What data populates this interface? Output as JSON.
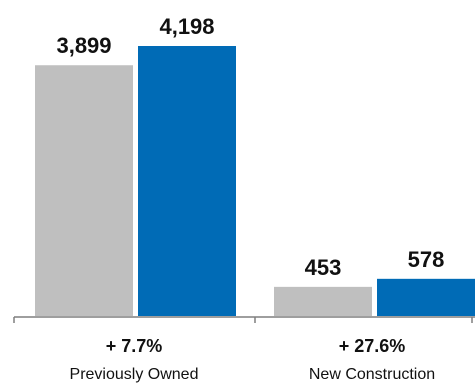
{
  "chart_data": {
    "type": "bar",
    "categories": [
      "Previously Owned",
      "New Construction"
    ],
    "changes": [
      "+ 7.7%",
      "+ 27.6%"
    ],
    "series": [
      {
        "values": [
          3899,
          453
        ],
        "value_labels": [
          "3,899",
          "453"
        ],
        "color": "#bfbfbf"
      },
      {
        "values": [
          4198,
          578
        ],
        "value_labels": [
          "4,198",
          "578"
        ],
        "color": "#006bb6"
      }
    ],
    "title": "",
    "xlabel": "",
    "ylabel": "",
    "ylim": [
      0,
      4198
    ],
    "grid": false,
    "legend": "none"
  }
}
